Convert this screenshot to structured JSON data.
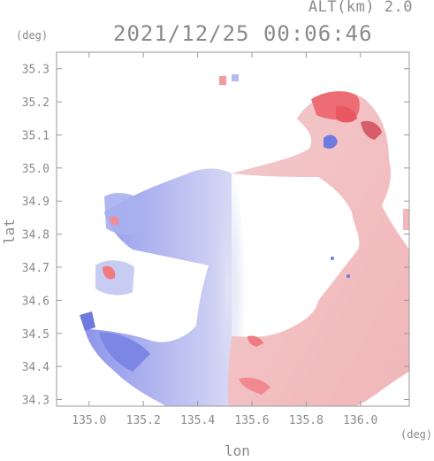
{
  "header": {
    "altitude": "ALT(km) 2.0",
    "timestamp": "2021/12/25 00:06:46"
  },
  "chart_data": {
    "type": "heatmap",
    "title": "2021/12/25 00:06:46",
    "subtitle": "ALT(km) 2.0",
    "xlabel": "lon",
    "ylabel": "lat",
    "x_unit": "(deg)",
    "y_unit": "(deg)",
    "xlim": [
      134.88,
      136.18
    ],
    "ylim": [
      34.28,
      35.35
    ],
    "x_ticks": [
      "135.0",
      "135.2",
      "135.4",
      "135.6",
      "135.8",
      "136.0"
    ],
    "y_ticks": [
      "34.3",
      "34.4",
      "34.5",
      "34.6",
      "34.7",
      "34.8",
      "34.9",
      "35.0",
      "35.1",
      "35.2",
      "35.3"
    ],
    "grid": false,
    "colors": {
      "negative": "#7b86e6",
      "near_zero": "#eaeaf6",
      "positive": "#f07a80",
      "axis": "#999999"
    }
  }
}
